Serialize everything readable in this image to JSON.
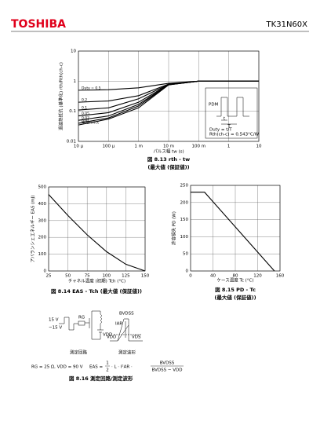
{
  "header": {
    "brand": "TOSHIBA",
    "part": "TK31N60X"
  },
  "chart_data": [
    {
      "type": "line",
      "title": "図 8.13  rth - tw",
      "subtitle": "(最大値 (保証値))",
      "xlabel": "パルス幅  tw  (s)",
      "ylabel": "過渡熱抵抗 (基準化) rth/Rth(ch-c)",
      "xlog": true,
      "ylog": true,
      "grid": true,
      "xlim": [
        1e-05,
        10
      ],
      "ylim": [
        0.01,
        10
      ],
      "xticks": [
        {
          "value": 1e-05,
          "label": "10 µ"
        },
        {
          "value": 0.0001,
          "label": "100 µ"
        },
        {
          "value": 0.001,
          "label": "1 m"
        },
        {
          "value": 0.01,
          "label": "10 m"
        },
        {
          "value": 0.1,
          "label": "100 m"
        },
        1,
        10
      ],
      "yticks": [
        0.01,
        0.1,
        1,
        10
      ],
      "x": [
        1e-05,
        0.0001,
        0.001,
        0.01,
        0.1,
        1,
        10
      ],
      "series": [
        {
          "name": "Duty = 0.5",
          "color": "#000000",
          "values": [
            0.5,
            0.52,
            0.6,
            0.85,
            1,
            1,
            1
          ]
        },
        {
          "name": "0.2",
          "color": "#000000",
          "values": [
            0.2,
            0.22,
            0.33,
            0.8,
            1,
            1,
            1
          ]
        },
        {
          "name": "0.1",
          "color": "#000000",
          "values": [
            0.11,
            0.13,
            0.26,
            0.78,
            1,
            1,
            1
          ]
        },
        {
          "name": "0.05",
          "color": "#000000",
          "values": [
            0.07,
            0.09,
            0.2,
            0.77,
            1,
            1,
            1
          ]
        },
        {
          "name": "0.02",
          "color": "#000000",
          "values": [
            0.05,
            0.07,
            0.17,
            0.76,
            1,
            1,
            1
          ]
        },
        {
          "name": "0.01",
          "color": "#000000",
          "values": [
            0.04,
            0.06,
            0.15,
            0.76,
            1,
            1,
            1
          ]
        },
        {
          "name": "単発パルス",
          "color": "#000000",
          "values": [
            0.035,
            0.055,
            0.13,
            0.75,
            1,
            1,
            1
          ]
        }
      ],
      "annotations": {
        "pdm": "PDM",
        "t": "t",
        "T": "T",
        "duty": "Duty = t/T",
        "rth": "Rth(ch-c) = 0.543°C/W"
      }
    },
    {
      "type": "line",
      "title": "図 8.14  EAS - Tch (最大値 (保証値))",
      "xlabel": "チャネル温度 (初期)  Tch  (°C)",
      "ylabel": "アバランシェエネルギー  EAS  (mJ)",
      "grid": true,
      "xlim": [
        25,
        150
      ],
      "ylim": [
        0,
        500
      ],
      "xticks": [
        25,
        50,
        75,
        100,
        125,
        150
      ],
      "yticks": [
        0,
        100,
        200,
        300,
        400,
        500
      ],
      "x": [
        25,
        50,
        75,
        100,
        125,
        150
      ],
      "series": [
        {
          "color": "#000000",
          "values": [
            455,
            330,
            215,
            115,
            40,
            0
          ]
        }
      ]
    },
    {
      "type": "line",
      "title": "図 8.15  PD - Tc",
      "subtitle": "(最大値 (保証値))",
      "xlabel": "ケース温度  Tc  (°C)",
      "ylabel": "許容損失  PD  (W)",
      "grid": true,
      "xlim": [
        0,
        160
      ],
      "ylim": [
        0,
        250
      ],
      "xticks": [
        0,
        40,
        80,
        120,
        160
      ],
      "yticks": [
        0,
        50,
        100,
        150,
        200,
        250
      ],
      "x": [
        0,
        25,
        150
      ],
      "series": [
        {
          "color": "#000000",
          "values": [
            230,
            230,
            0
          ]
        }
      ]
    }
  ],
  "circuit": {
    "gate_high": "15 V",
    "gate_low": "−15 V",
    "rg": "RG",
    "vdd_circuit": "VDD",
    "circuit_caption": "測定回路",
    "bvdss": "BVDSS",
    "iar": "IAR",
    "vdd_wave": "VDD",
    "vds": "VDS",
    "wave_caption": "測定波形",
    "conditions": "RG = 25 Ω, VDD = 90 V",
    "eas": "EAS =",
    "half_num": "1",
    "half_den": "2",
    "mid": "· L · I²AR ·",
    "frac_num": "BVDSS",
    "frac_den": "BVDSS − VDD",
    "title": "図 8.16  測定回路/測定波形"
  }
}
